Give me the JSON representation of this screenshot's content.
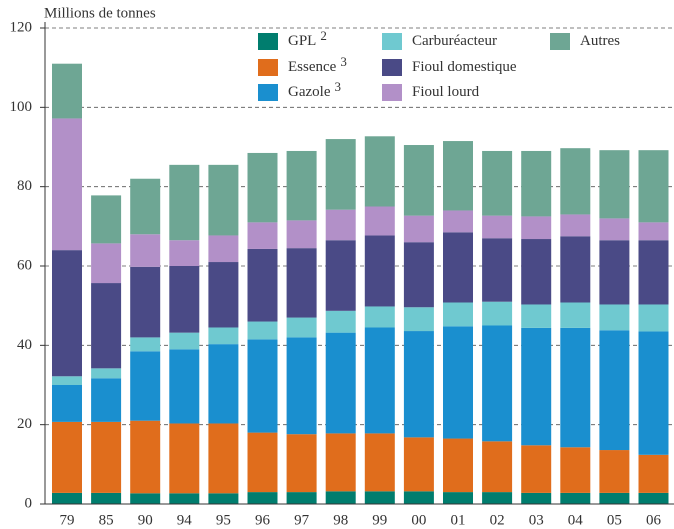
{
  "chart_data": {
    "type": "stacked_bar",
    "y_axis_label": "Millions de tonnes",
    "categories": [
      "79",
      "85",
      "90",
      "94",
      "95",
      "96",
      "97",
      "98",
      "99",
      "00",
      "01",
      "02",
      "03",
      "04",
      "05",
      "06"
    ],
    "series": [
      {
        "name": "GPL",
        "name_note": "2",
        "color": "#007d6e",
        "values": [
          2.8,
          2.8,
          2.7,
          2.7,
          2.7,
          3,
          3,
          3.2,
          3.2,
          3.2,
          3,
          3,
          2.8,
          2.8,
          2.8,
          2.8
        ]
      },
      {
        "name": "Essence",
        "name_note": "3",
        "color": "#e06d1c",
        "values": [
          17.9,
          17.9,
          18.3,
          17.6,
          17.6,
          15,
          14.6,
          14.6,
          14.6,
          13.6,
          13.5,
          12.8,
          12,
          11.5,
          10.8,
          9.6
        ]
      },
      {
        "name": "Gazole",
        "name_note": "3",
        "color": "#1a8fcf",
        "values": [
          9.3,
          11,
          17.5,
          18.7,
          20,
          23.5,
          24.4,
          25.4,
          26.7,
          26.8,
          28.3,
          29.2,
          29.6,
          30.1,
          30.2,
          31.1
        ]
      },
      {
        "name": "Carburéacteur",
        "color": "#6fc9d0",
        "values": [
          2.2,
          2.5,
          3.5,
          4.2,
          4.2,
          4.5,
          5,
          5.5,
          5.3,
          6,
          6,
          6,
          5.9,
          6.4,
          6.5,
          6.8
        ]
      },
      {
        "name": "Fioul domestique",
        "color": "#4a4a86",
        "values": [
          31.8,
          21.5,
          17.8,
          16.8,
          16.5,
          18.3,
          17.5,
          17.8,
          17.9,
          16.4,
          17.7,
          16,
          16.5,
          16.7,
          16.2,
          16.2
        ]
      },
      {
        "name": "Fioul lourd",
        "color": "#b290c8",
        "values": [
          33.2,
          10,
          8.2,
          6.5,
          6.7,
          6.7,
          7,
          7.7,
          7.3,
          6.7,
          5.5,
          5.7,
          5.7,
          5.5,
          5.5,
          4.5
        ]
      },
      {
        "name": "Autres",
        "color": "#6ea694",
        "values": [
          13.8,
          12.1,
          14,
          19,
          17.8,
          17.5,
          17.5,
          17.8,
          17.7,
          17.8,
          17.5,
          16.3,
          16.5,
          16.7,
          17.2,
          18.2
        ]
      }
    ],
    "ylim": [
      0,
      120
    ],
    "yticks": [
      0,
      20,
      40,
      60,
      80,
      100,
      120
    ],
    "grid": true
  }
}
